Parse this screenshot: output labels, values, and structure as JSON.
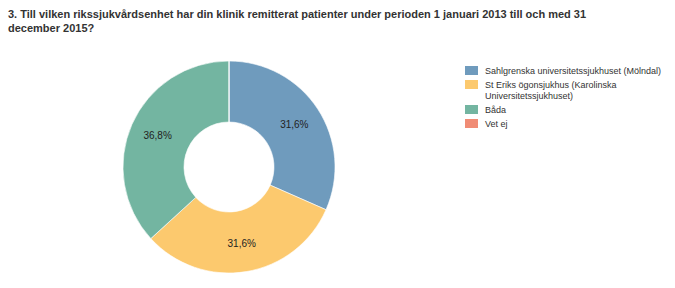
{
  "chart_data": {
    "type": "donut",
    "title": "3. Till vilken rikssjukvårdsenhet har din klinik remitterat patienter under perioden 1 januari 2013 till och med 31 december 2015?",
    "categories": [
      "Sahlgrenska universitetssjukhuset (Mölndal)",
      "St Eriks ögonsjukhus (Karolinska Universitetssjukhuset)",
      "Båda",
      "Vet ej"
    ],
    "values": [
      31.6,
      31.6,
      36.8,
      0
    ],
    "value_labels": [
      "31,6%",
      "31,6%",
      "36,8%",
      null
    ],
    "colors": [
      "#6f9bbd",
      "#fcc96e",
      "#73b5a1",
      "#f08c75"
    ],
    "data_labels": true,
    "legend": "right"
  }
}
